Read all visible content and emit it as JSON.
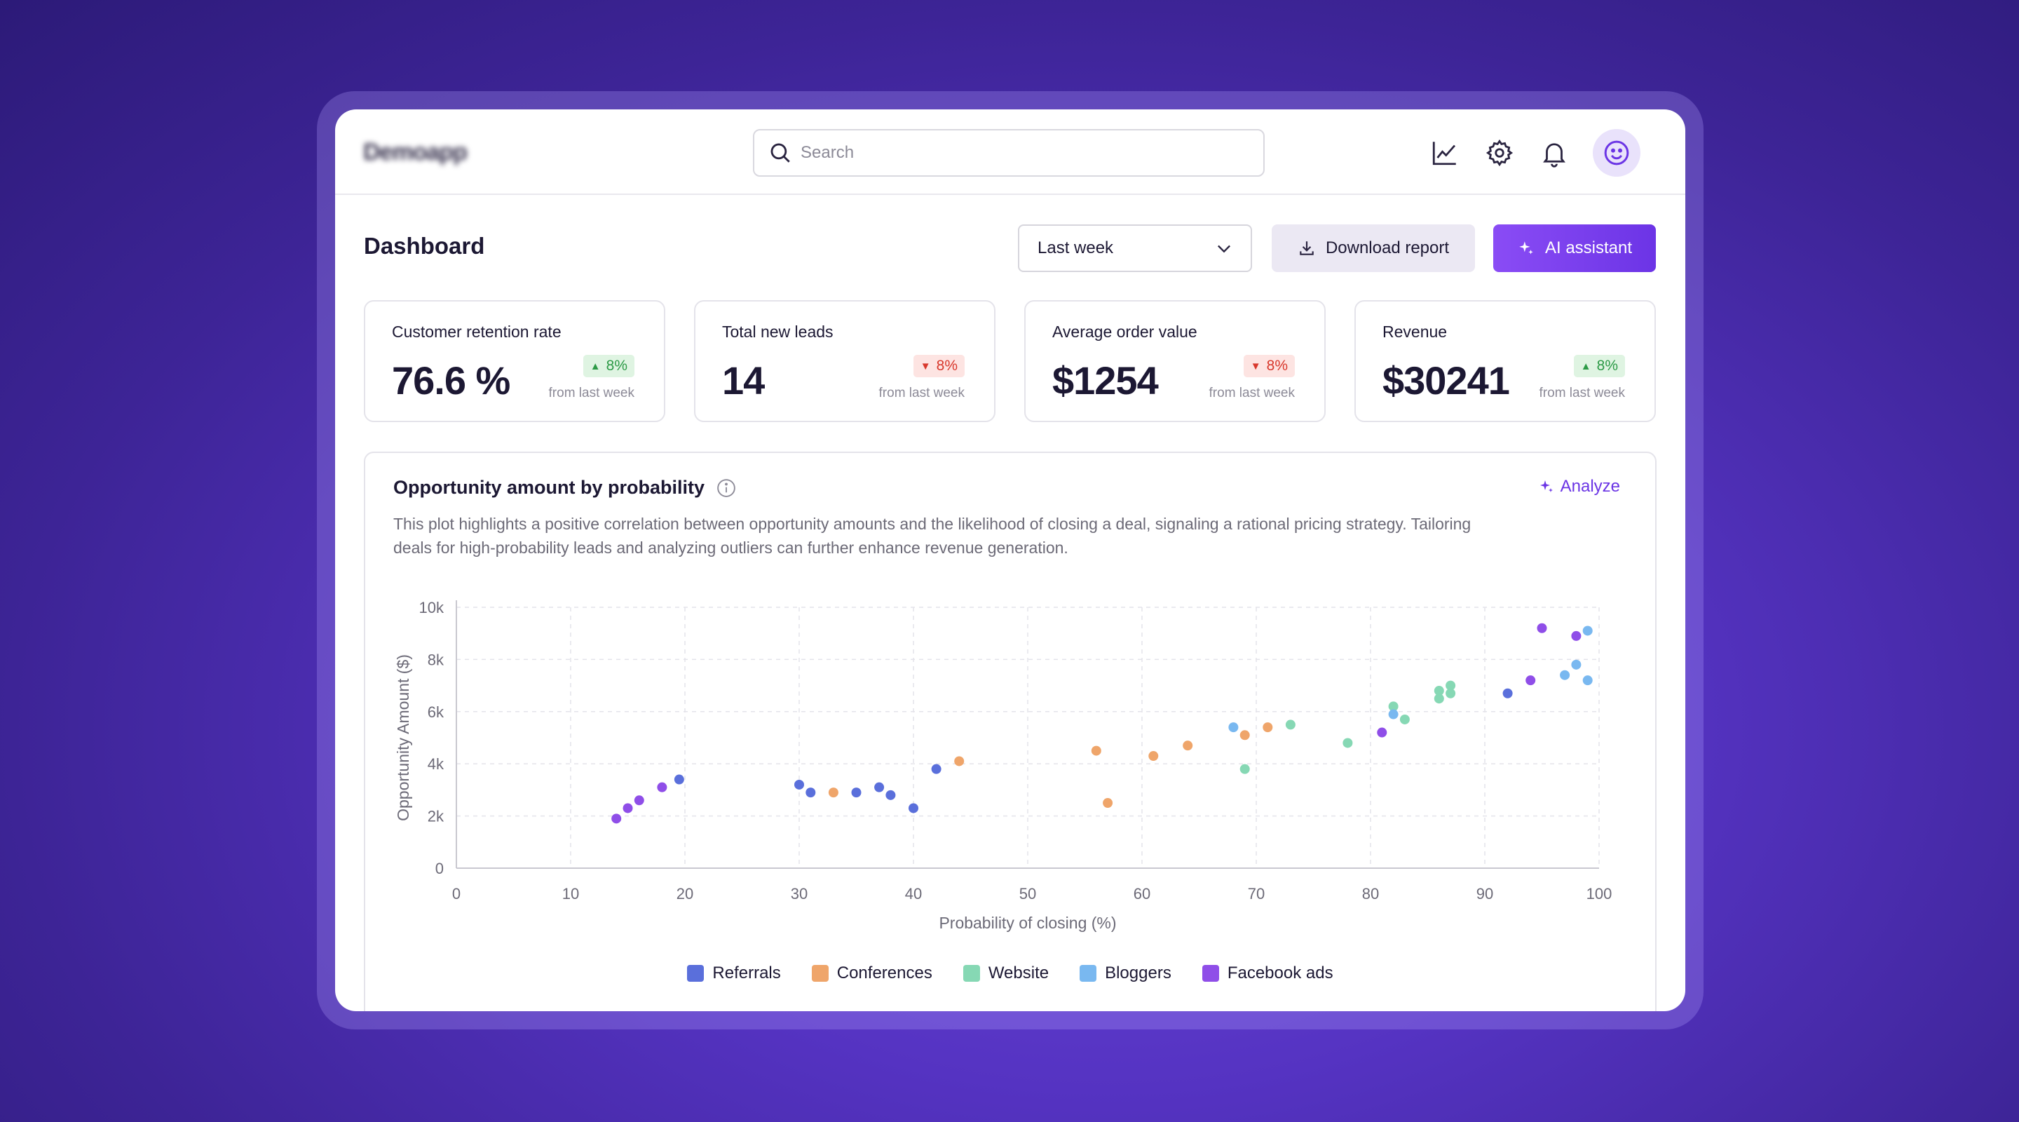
{
  "header": {
    "logo_text": "Demoapp",
    "search_placeholder": "Search",
    "icons": [
      "analytics-icon",
      "settings-icon",
      "bell-icon",
      "smiley-avatar-icon"
    ]
  },
  "toolbar": {
    "page_title": "Dashboard",
    "period_select": "Last week",
    "download_label": "Download report",
    "ai_label": "AI assistant"
  },
  "kpis": [
    {
      "label": "Customer retention rate",
      "value": "76.6 %",
      "change": "8%",
      "direction": "up",
      "sub": "from last week"
    },
    {
      "label": "Total new leads",
      "value": "14",
      "change": "8%",
      "direction": "down",
      "sub": "from last week"
    },
    {
      "label": "Average order value",
      "value": "$1254",
      "change": "8%",
      "direction": "down",
      "sub": "from last week"
    },
    {
      "label": "Revenue",
      "value": "$30241",
      "change": "8%",
      "direction": "up",
      "sub": "from last week"
    }
  ],
  "chart_card": {
    "title": "Opportunity amount by probability",
    "analyze_label": "Analyze",
    "description": "This plot highlights a positive correlation between opportunity amounts and the likelihood of closing a deal, signaling a rational pricing strategy. Tailoring deals for high-probability leads and analyzing outliers can further enhance revenue generation."
  },
  "colors": {
    "accent": "#6b35e5",
    "Referrals": "#5a6fdb",
    "Conferences": "#efa56a",
    "Website": "#86d8b4",
    "Bloggers": "#79b8f0",
    "Facebook ads": "#8f4ee8"
  },
  "chart_data": {
    "type": "scatter",
    "title": "",
    "xlabel": "Probability of closing (%)",
    "ylabel": "Opportunity Amount ($)",
    "xlim": [
      0,
      100
    ],
    "ylim": [
      0,
      10000
    ],
    "x_ticks": [
      "0",
      "10",
      "20",
      "30",
      "40",
      "50",
      "60",
      "70",
      "80",
      "90",
      "100"
    ],
    "y_ticks": [
      "0",
      "2k",
      "4k",
      "6k",
      "8k",
      "10k"
    ],
    "grid": true,
    "legend_position": "bottom",
    "series": [
      {
        "name": "Referrals",
        "points": [
          [
            19.5,
            3400
          ],
          [
            30,
            3200
          ],
          [
            31,
            2900
          ],
          [
            35,
            2900
          ],
          [
            37,
            3100
          ],
          [
            38,
            2800
          ],
          [
            40,
            2300
          ],
          [
            42,
            3800
          ],
          [
            92,
            6700
          ]
        ]
      },
      {
        "name": "Conferences",
        "points": [
          [
            33,
            2900
          ],
          [
            44,
            4100
          ],
          [
            56,
            4500
          ],
          [
            57,
            2500
          ],
          [
            61,
            4300
          ],
          [
            64,
            4700
          ],
          [
            69,
            5100
          ],
          [
            71,
            5400
          ]
        ]
      },
      {
        "name": "Website",
        "points": [
          [
            69,
            3800
          ],
          [
            73,
            5500
          ],
          [
            78,
            4800
          ],
          [
            82,
            6200
          ],
          [
            83,
            5700
          ],
          [
            86,
            6800
          ],
          [
            86,
            6500
          ],
          [
            87,
            7000
          ],
          [
            87,
            6700
          ]
        ]
      },
      {
        "name": "Bloggers",
        "points": [
          [
            68,
            5400
          ],
          [
            82,
            5900
          ],
          [
            97,
            7400
          ],
          [
            98,
            7800
          ],
          [
            99,
            7200
          ],
          [
            99,
            9100
          ]
        ]
      },
      {
        "name": "Facebook ads",
        "points": [
          [
            14,
            1900
          ],
          [
            15,
            2300
          ],
          [
            16,
            2600
          ],
          [
            18,
            3100
          ],
          [
            81,
            5200
          ],
          [
            94,
            7200
          ],
          [
            95,
            9200
          ],
          [
            98,
            8900
          ]
        ]
      }
    ]
  }
}
